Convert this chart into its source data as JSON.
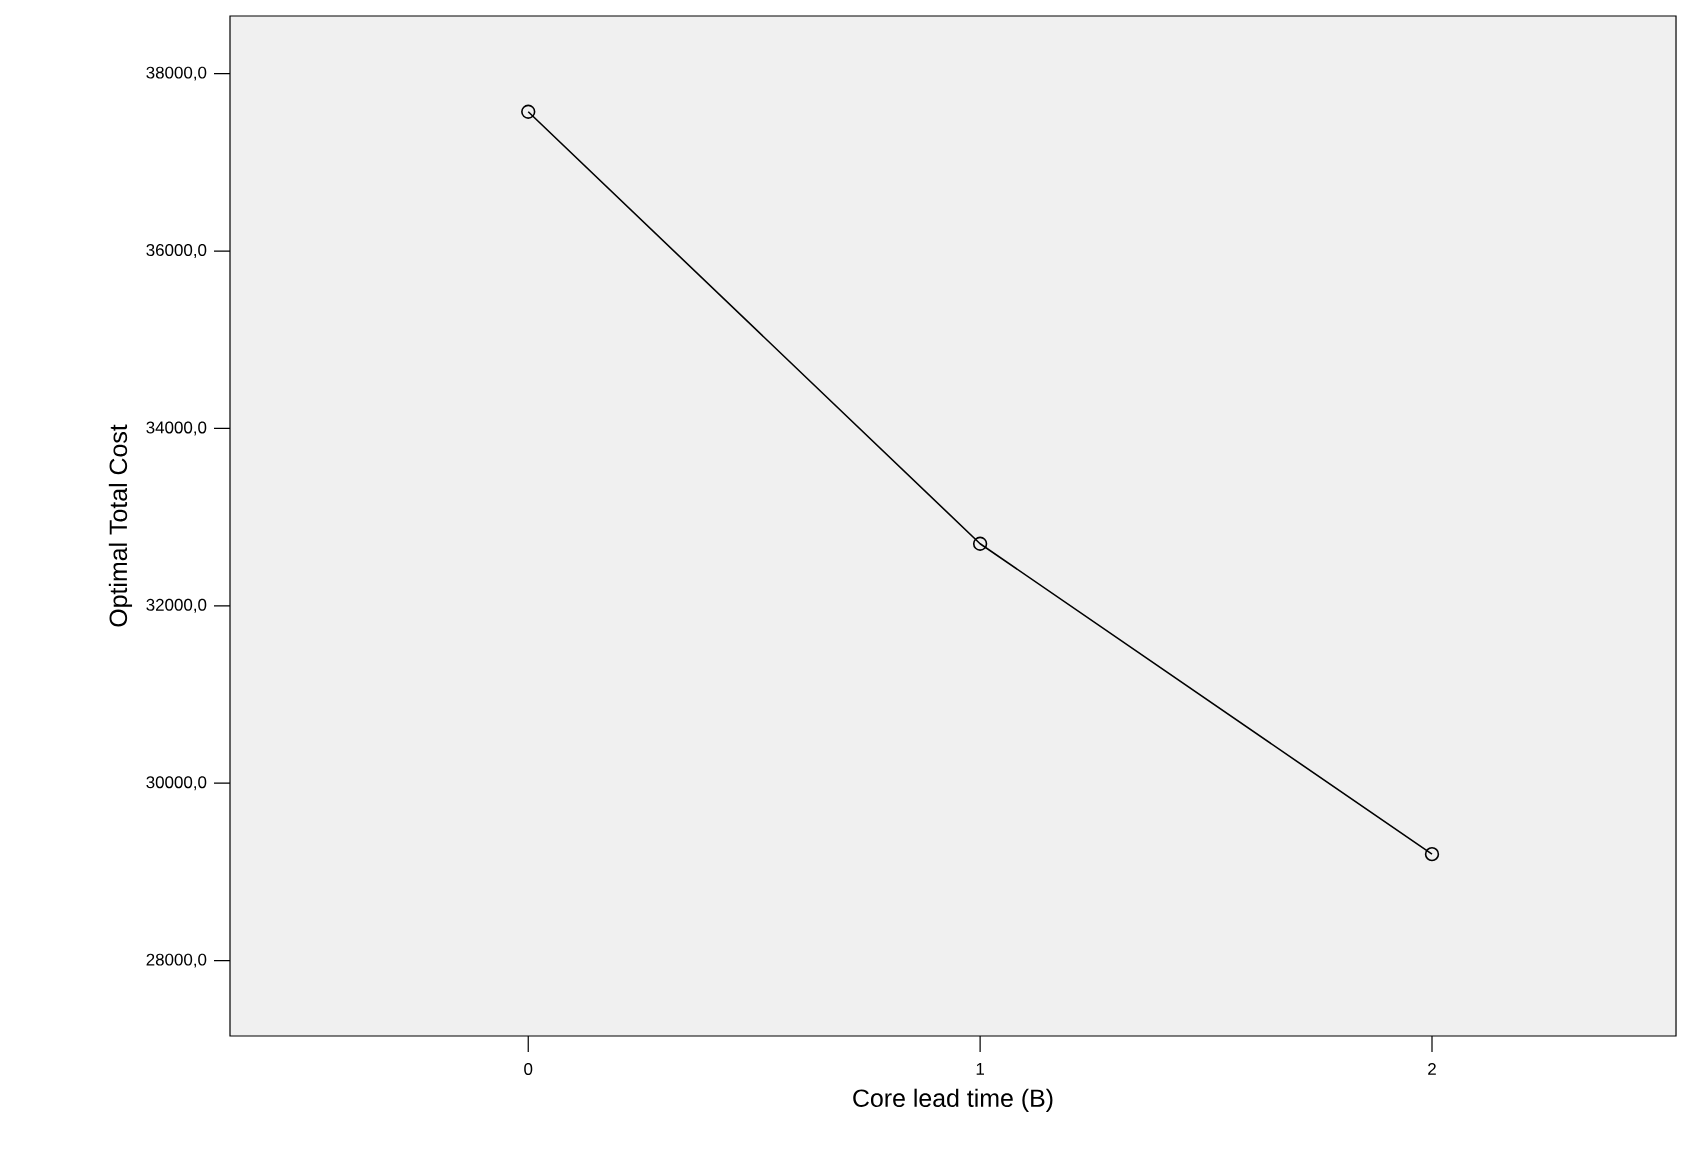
{
  "chart_data": {
    "type": "line",
    "xlabel": "Core lead time (B)",
    "ylabel": "Optimal Total Cost",
    "categories": [
      "0",
      "1",
      "2"
    ],
    "series": [
      {
        "color": "#000000",
        "values": [
          37570,
          32700,
          29200
        ]
      }
    ],
    "ylim": [
      27150,
      38650
    ],
    "yticks": [
      {
        "value": 28000,
        "label": "28000,0"
      },
      {
        "value": 30000,
        "label": "30000,0"
      },
      {
        "value": 32000,
        "label": "32000,0"
      },
      {
        "value": 34000,
        "label": "34000,0"
      },
      {
        "value": 36000,
        "label": "36000,0"
      },
      {
        "value": 38000,
        "label": "38000,0"
      }
    ],
    "grid": false,
    "marker": "circle",
    "line_style": "solid"
  }
}
